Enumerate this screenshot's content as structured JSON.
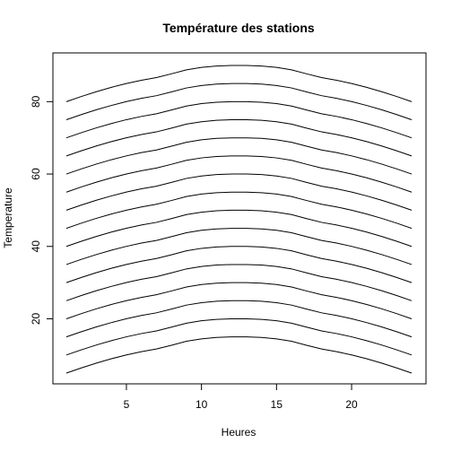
{
  "chart_data": {
    "type": "line",
    "title": "Température des stations",
    "xlabel": "Heures",
    "ylabel": "Temperature",
    "x": [
      1,
      2,
      3,
      4,
      5,
      6,
      7,
      8,
      9,
      10,
      11,
      12,
      13,
      14,
      15,
      16,
      17,
      18,
      19,
      20,
      21,
      22,
      23,
      24
    ],
    "xlim": [
      1,
      24
    ],
    "ylim": [
      5,
      90
    ],
    "xticks": [
      5,
      10,
      15,
      20
    ],
    "yticks": [
      20,
      40,
      60,
      80
    ],
    "grid": false,
    "legend": "none",
    "line_color": "#000000",
    "series": [
      {
        "values": [
          5.0,
          6.43,
          7.76,
          8.96,
          10.02,
          10.92,
          11.65,
          12.69,
          13.79,
          14.46,
          14.85,
          15.0,
          15.0,
          14.85,
          14.46,
          13.79,
          12.69,
          11.65,
          10.92,
          10.02,
          8.96,
          7.76,
          6.43,
          5.0
        ]
      },
      {
        "values": [
          10.0,
          11.43,
          12.76,
          13.96,
          15.02,
          15.92,
          16.65,
          17.69,
          18.79,
          19.46,
          19.85,
          20.0,
          20.0,
          19.85,
          19.46,
          18.79,
          17.69,
          16.65,
          15.92,
          15.02,
          13.96,
          12.76,
          11.43,
          10.0
        ]
      },
      {
        "values": [
          15.0,
          16.43,
          17.76,
          18.96,
          20.02,
          20.92,
          21.65,
          22.69,
          23.79,
          24.46,
          24.85,
          25.0,
          25.0,
          24.85,
          24.46,
          23.79,
          22.69,
          21.65,
          20.92,
          20.02,
          18.96,
          17.76,
          16.43,
          15.0
        ]
      },
      {
        "values": [
          20.0,
          21.43,
          22.76,
          23.96,
          25.02,
          25.92,
          26.65,
          27.69,
          28.79,
          29.46,
          29.85,
          30.0,
          30.0,
          29.85,
          29.46,
          28.79,
          27.69,
          26.65,
          25.92,
          25.02,
          23.96,
          22.76,
          21.43,
          20.0
        ]
      },
      {
        "values": [
          25.0,
          26.43,
          27.76,
          28.96,
          30.02,
          30.92,
          31.65,
          32.69,
          33.79,
          34.46,
          34.85,
          35.0,
          35.0,
          34.85,
          34.46,
          33.79,
          32.69,
          31.65,
          30.92,
          30.02,
          28.96,
          27.76,
          26.43,
          25.0
        ]
      },
      {
        "values": [
          30.0,
          31.43,
          32.76,
          33.96,
          35.02,
          35.92,
          36.65,
          37.69,
          38.79,
          39.46,
          39.85,
          40.0,
          40.0,
          39.85,
          39.46,
          38.79,
          37.69,
          36.65,
          35.92,
          35.02,
          33.96,
          32.76,
          31.43,
          30.0
        ]
      },
      {
        "values": [
          35.0,
          36.43,
          37.76,
          38.96,
          40.02,
          40.92,
          41.65,
          42.69,
          43.79,
          44.46,
          44.85,
          45.0,
          45.0,
          44.85,
          44.46,
          43.79,
          42.69,
          41.65,
          40.92,
          40.02,
          38.96,
          37.76,
          36.43,
          35.0
        ]
      },
      {
        "values": [
          40.0,
          41.43,
          42.76,
          43.96,
          45.02,
          45.92,
          46.65,
          47.69,
          48.79,
          49.46,
          49.85,
          50.0,
          50.0,
          49.85,
          49.46,
          48.79,
          47.69,
          46.65,
          45.92,
          45.02,
          43.96,
          42.76,
          41.43,
          40.0
        ]
      },
      {
        "values": [
          45.0,
          46.43,
          47.76,
          48.96,
          50.02,
          50.92,
          51.65,
          52.69,
          53.79,
          54.46,
          54.85,
          55.0,
          55.0,
          54.85,
          54.46,
          53.79,
          52.69,
          51.65,
          50.92,
          50.02,
          48.96,
          47.76,
          46.43,
          45.0
        ]
      },
      {
        "values": [
          50.0,
          51.43,
          52.76,
          53.96,
          55.02,
          55.92,
          56.65,
          57.69,
          58.79,
          59.46,
          59.85,
          60.0,
          60.0,
          59.85,
          59.46,
          58.79,
          57.69,
          56.65,
          55.92,
          55.02,
          53.96,
          52.76,
          51.43,
          50.0
        ]
      },
      {
        "values": [
          55.0,
          56.43,
          57.76,
          58.96,
          60.02,
          60.92,
          61.65,
          62.69,
          63.79,
          64.46,
          64.85,
          65.0,
          65.0,
          64.85,
          64.46,
          63.79,
          62.69,
          61.65,
          60.92,
          60.02,
          58.96,
          57.76,
          56.43,
          55.0
        ]
      },
      {
        "values": [
          60.0,
          61.43,
          62.76,
          63.96,
          65.02,
          65.92,
          66.65,
          67.69,
          68.79,
          69.46,
          69.85,
          70.0,
          70.0,
          69.85,
          69.46,
          68.79,
          67.69,
          66.65,
          65.92,
          65.02,
          63.96,
          62.76,
          61.43,
          60.0
        ]
      },
      {
        "values": [
          65.0,
          66.43,
          67.76,
          68.96,
          70.02,
          70.92,
          71.65,
          72.69,
          73.79,
          74.46,
          74.85,
          75.0,
          75.0,
          74.85,
          74.46,
          73.79,
          72.69,
          71.65,
          70.92,
          70.02,
          68.96,
          67.76,
          66.43,
          65.0
        ]
      },
      {
        "values": [
          70.0,
          71.43,
          72.76,
          73.96,
          75.02,
          75.92,
          76.65,
          77.69,
          78.79,
          79.46,
          79.85,
          80.0,
          80.0,
          79.85,
          79.46,
          78.79,
          77.69,
          76.65,
          75.92,
          75.02,
          73.96,
          72.76,
          71.43,
          70.0
        ]
      },
      {
        "values": [
          75.0,
          76.43,
          77.76,
          78.96,
          80.02,
          80.92,
          81.65,
          82.69,
          83.79,
          84.46,
          84.85,
          85.0,
          85.0,
          84.85,
          84.46,
          83.79,
          82.69,
          81.65,
          80.92,
          80.02,
          78.96,
          77.76,
          76.43,
          75.0
        ]
      },
      {
        "values": [
          80.0,
          81.43,
          82.76,
          83.96,
          85.02,
          85.92,
          86.65,
          87.69,
          88.79,
          89.46,
          89.85,
          90.0,
          90.0,
          89.85,
          89.46,
          88.79,
          87.69,
          86.65,
          85.92,
          85.02,
          83.96,
          82.76,
          81.43,
          80.0
        ]
      }
    ]
  }
}
